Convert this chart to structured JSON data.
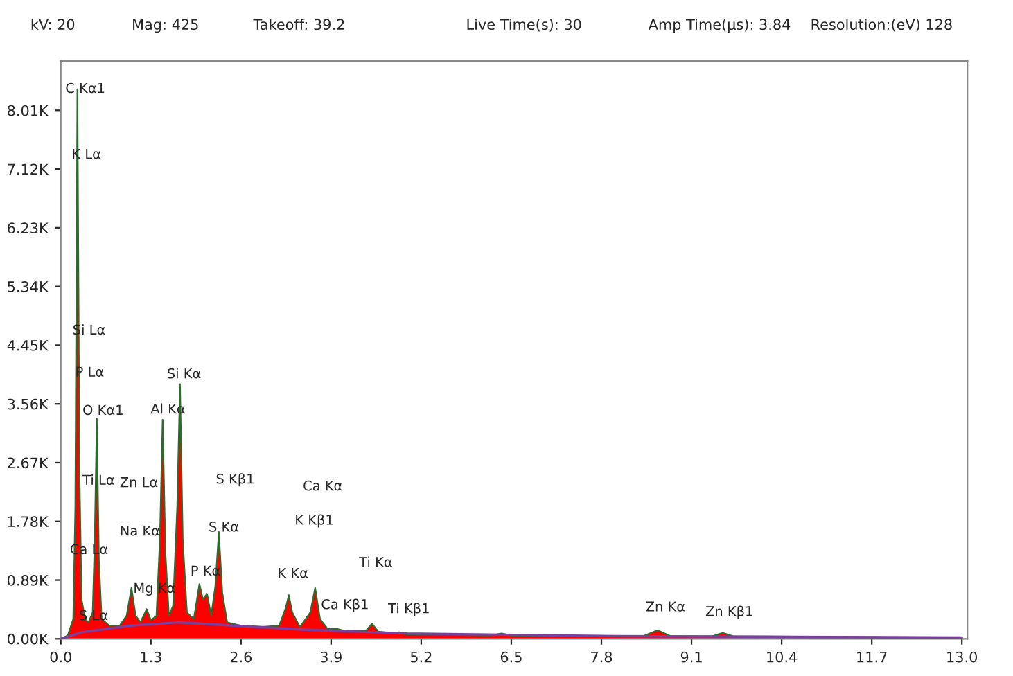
{
  "chart_data": {
    "type": "area",
    "xlim": [
      0,
      13.08
    ],
    "ylim": [
      0,
      8.76
    ],
    "xticks": [
      {
        "value": 0,
        "label": "0.0"
      },
      1.3,
      2.6,
      3.9,
      5.2,
      6.5,
      7.8,
      9.1,
      10.4,
      11.7,
      {
        "value": 13,
        "label": "13.0"
      }
    ],
    "yticks": [
      {
        "value": 0,
        "label": "0.00K"
      },
      {
        "value": 0.89,
        "label": "0.89K"
      },
      {
        "value": 1.78,
        "label": "1.78K"
      },
      {
        "value": 2.67,
        "label": "2.67K"
      },
      {
        "value": 3.56,
        "label": "3.56K"
      },
      {
        "value": 4.45,
        "label": "4.45K"
      },
      {
        "value": 5.34,
        "label": "5.34K"
      },
      {
        "value": 6.23,
        "label": "6.23K"
      },
      {
        "value": 7.12,
        "label": "7.12K"
      },
      {
        "value": 8.01,
        "label": "8.01K"
      }
    ],
    "grid": false,
    "series": [
      {
        "color": "#ff0000",
        "x": [
          0.0,
          0.1,
          0.18,
          0.21,
          0.24,
          0.27,
          0.3,
          0.35,
          0.4,
          0.46,
          0.49,
          0.52,
          0.55,
          0.59,
          0.7,
          0.85,
          0.95,
          1.02,
          1.08,
          1.15,
          1.24,
          1.3,
          1.38,
          1.43,
          1.47,
          1.51,
          1.56,
          1.62,
          1.68,
          1.72,
          1.76,
          1.82,
          1.92,
          2.0,
          2.05,
          2.11,
          2.17,
          2.23,
          2.28,
          2.33,
          2.4,
          2.6,
          2.9,
          3.15,
          3.24,
          3.29,
          3.34,
          3.45,
          3.6,
          3.67,
          3.74,
          3.85,
          3.99,
          4.1,
          4.4,
          4.49,
          4.58,
          4.8,
          4.88,
          4.96,
          5.5,
          6.2,
          6.36,
          6.5,
          7.5,
          8.4,
          8.61,
          8.8,
          9.4,
          9.55,
          9.7,
          11.0,
          13.0
        ],
        "values": [
          0,
          0.05,
          0.3,
          2.0,
          8.33,
          2.5,
          0.6,
          0.3,
          0.25,
          0.4,
          1.5,
          3.34,
          1.2,
          0.3,
          0.2,
          0.2,
          0.35,
          0.77,
          0.35,
          0.25,
          0.45,
          0.28,
          0.35,
          1.5,
          3.32,
          1.3,
          0.35,
          0.5,
          2.0,
          3.86,
          1.5,
          0.4,
          0.3,
          0.83,
          0.6,
          0.68,
          0.35,
          0.8,
          1.62,
          0.7,
          0.25,
          0.2,
          0.18,
          0.2,
          0.45,
          0.66,
          0.4,
          0.18,
          0.4,
          0.77,
          0.3,
          0.15,
          0.15,
          0.12,
          0.12,
          0.23,
          0.11,
          0.08,
          0.1,
          0.07,
          0.06,
          0.05,
          0.08,
          0.05,
          0.04,
          0.04,
          0.13,
          0.04,
          0.04,
          0.09,
          0.04,
          0.03,
          0.02
        ]
      },
      {
        "type": "line",
        "color": "#7b3fa0",
        "x": [
          0,
          0.3,
          1.0,
          1.7,
          2.5,
          3.5,
          5.0,
          8.0,
          13.0
        ],
        "values": [
          0,
          0.1,
          0.2,
          0.25,
          0.2,
          0.14,
          0.08,
          0.04,
          0.02
        ]
      }
    ],
    "annotations": [
      "kV: 20",
      "Mag: 425",
      "Takeoff: 39.2",
      "Live Time(s): 30",
      "Amp Time(µs): 3.84",
      "Resolution:(eV) 128",
      "C Kα1",
      "K Lα",
      "Si Lα",
      "P Lα",
      "O Kα1",
      "Ti Lα",
      "Zn Lα",
      "Na Kα",
      "Ca Lα",
      "Mg Kα",
      "S Lα",
      "Al Kα",
      "Si Kα",
      "P Kα",
      "S Kβ1",
      "S Kα",
      "Ca Kα",
      "K Kβ1",
      "Ti Kα",
      "K Kα",
      "Ca Kβ1",
      "Ti Kβ1",
      "Zn Kα",
      "Zn Kβ1"
    ]
  }
}
